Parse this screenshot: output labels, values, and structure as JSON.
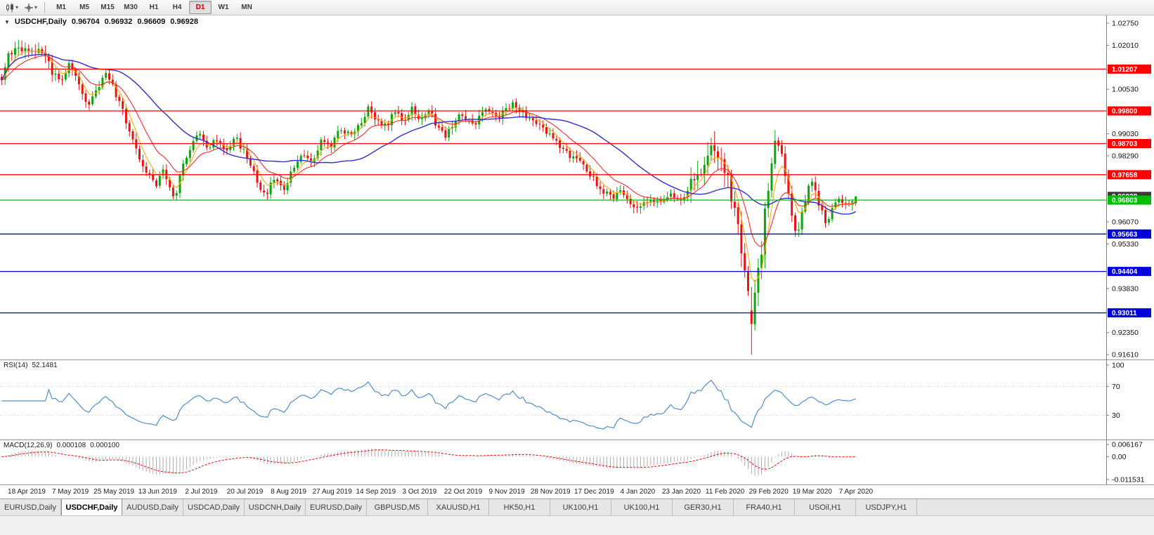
{
  "toolbar": {
    "timeframes": [
      "M1",
      "M5",
      "M15",
      "M30",
      "H1",
      "H4",
      "D1",
      "W1",
      "MN"
    ],
    "active_timeframe": "D1"
  },
  "chart": {
    "symbol": "USDCHF,Daily",
    "open": "0.96704",
    "high": "0.96932",
    "low": "0.96609",
    "close": "0.96928"
  },
  "price_axis": {
    "ticks": [
      "1.02750",
      "1.02010",
      "1.01270",
      "1.00530",
      "0.99790",
      "0.99030",
      "0.98290",
      "0.97550",
      "0.96810",
      "0.96070",
      "0.95330",
      "0.94570",
      "0.93830",
      "0.93090",
      "0.92350",
      "0.91610"
    ]
  },
  "hlines": {
    "red": [
      "1.01207",
      "0.99800",
      "0.98703",
      "0.97658"
    ],
    "green": [
      "0.96803"
    ],
    "blue": [
      "0.95663",
      "0.94404",
      "0.93011"
    ],
    "bid": "0.96928"
  },
  "date_axis": [
    "18 Apr 2019",
    "7 May 2019",
    "25 May 2019",
    "13 Jun 2019",
    "2 Jul 2019",
    "20 Jul 2019",
    "8 Aug 2019",
    "27 Aug 2019",
    "14 Sep 2019",
    "3 Oct 2019",
    "22 Oct 2019",
    "9 Nov 2019",
    "28 Nov 2019",
    "17 Dec 2019",
    "4 Jan 2020",
    "23 Jan 2020",
    "11 Feb 2020",
    "29 Feb 2020",
    "19 Mar 2020",
    "7 Apr 2020"
  ],
  "rsi": {
    "label": "RSI(14)",
    "value": "52.1481",
    "axis": [
      "100",
      "70",
      "30"
    ],
    "levels": [
      70,
      30
    ]
  },
  "macd": {
    "label": "MACD(12,26,9)",
    "value1": "0.000108",
    "value2": "0.000100",
    "axis_top": "0.006167",
    "axis_zero": "0.00",
    "axis_bottom": "-0.011531",
    "range": [
      -0.011531,
      0.006167
    ]
  },
  "tabs": {
    "items": [
      "EURUSD,Daily",
      "USDCHF,Daily",
      "AUDUSD,Daily",
      "USDCAD,Daily",
      "USDCNH,Daily",
      "EURUSD,Daily",
      "GBPUSD,M5",
      "XAUUSD,H1",
      "HK50,H1",
      "UK100,H1",
      "UK100,H1",
      "GER30,H1",
      "FRA40,H1",
      "USOil,H1",
      "USDJPY,H1"
    ],
    "active_index": 1
  },
  "colors": {
    "up": "#0CA50C",
    "down": "#E81414",
    "ma_fast": "#FFAC00",
    "ma_mid": "#FF2A2A",
    "ma_slow": "#2E2EDC",
    "hline_red": "#FF0000",
    "hline_blue": "#0000DD",
    "hline_green": "#00BE00",
    "bid_label": "#3C3C3C",
    "rsi_line": "#4F8FD0",
    "rsi_level": "#C9C9C9",
    "macd_hist": "#ADADAD",
    "macd_signal": "#FF0000",
    "axis_line": "#808080",
    "tick_text": "#111111"
  },
  "chart_data": {
    "type": "candlestick",
    "symbol": "USDCHF",
    "timeframe": "Daily",
    "num_candles": 255,
    "x_start": "18 Apr 2019",
    "x_end": "7 Apr 2020",
    "price_range": [
      0.9161,
      1.0275
    ],
    "extremes": {
      "high": 1.0207,
      "low": 0.9161,
      "rebound_high": 0.9915,
      "last_close": 0.96928
    },
    "last_candle": {
      "open": 0.96704,
      "high": 0.96932,
      "low": 0.96609,
      "close": 0.96928
    },
    "horizontal_levels": {
      "resistance": [
        1.01207,
        0.998,
        0.98703,
        0.97658
      ],
      "current": 0.96803,
      "support": [
        0.95663,
        0.94404,
        0.93011
      ]
    },
    "close_waypoints": [
      [
        0.0,
        1.008
      ],
      [
        0.008,
        1.016
      ],
      [
        0.02,
        1.02
      ],
      [
        0.033,
        1.0165
      ],
      [
        0.045,
        1.0195
      ],
      [
        0.058,
        1.012
      ],
      [
        0.07,
        1.008
      ],
      [
        0.08,
        1.0145
      ],
      [
        0.092,
        1.005
      ],
      [
        0.102,
        1.0
      ],
      [
        0.112,
        1.006
      ],
      [
        0.124,
        1.0105
      ],
      [
        0.136,
        1.002
      ],
      [
        0.148,
        0.993
      ],
      [
        0.16,
        0.983
      ],
      [
        0.172,
        0.976
      ],
      [
        0.181,
        0.972
      ],
      [
        0.188,
        0.979
      ],
      [
        0.196,
        0.973
      ],
      [
        0.203,
        0.969
      ],
      [
        0.212,
        0.979
      ],
      [
        0.222,
        0.987
      ],
      [
        0.232,
        0.99
      ],
      [
        0.242,
        0.9855
      ],
      [
        0.252,
        0.9885
      ],
      [
        0.262,
        0.984
      ],
      [
        0.272,
        0.9895
      ],
      [
        0.282,
        0.985
      ],
      [
        0.292,
        0.98
      ],
      [
        0.3,
        0.973
      ],
      [
        0.31,
        0.9705
      ],
      [
        0.32,
        0.976
      ],
      [
        0.33,
        0.972
      ],
      [
        0.342,
        0.979
      ],
      [
        0.352,
        0.984
      ],
      [
        0.362,
        0.98
      ],
      [
        0.374,
        0.9875
      ],
      [
        0.386,
        0.986
      ],
      [
        0.396,
        0.992
      ],
      [
        0.408,
        0.9895
      ],
      [
        0.42,
        0.993
      ],
      [
        0.43,
        1.0
      ],
      [
        0.438,
        0.9945
      ],
      [
        0.45,
        0.9925
      ],
      [
        0.46,
        0.9975
      ],
      [
        0.47,
        0.995
      ],
      [
        0.48,
        0.999
      ],
      [
        0.49,
        0.995
      ],
      [
        0.5,
        0.998
      ],
      [
        0.51,
        0.993
      ],
      [
        0.52,
        0.99
      ],
      [
        0.53,
        0.9945
      ],
      [
        0.54,
        0.9975
      ],
      [
        0.55,
        0.9925
      ],
      [
        0.56,
        0.996
      ],
      [
        0.57,
        0.999
      ],
      [
        0.58,
        0.995
      ],
      [
        0.59,
        0.9985
      ],
      [
        0.6,
        1.0005
      ],
      [
        0.61,
        0.9975
      ],
      [
        0.624,
        0.994
      ],
      [
        0.638,
        0.991
      ],
      [
        0.652,
        0.987
      ],
      [
        0.666,
        0.983
      ],
      [
        0.678,
        0.98
      ],
      [
        0.69,
        0.976
      ],
      [
        0.702,
        0.972
      ],
      [
        0.714,
        0.969
      ],
      [
        0.726,
        0.9715
      ],
      [
        0.736,
        0.9672
      ],
      [
        0.748,
        0.9655
      ],
      [
        0.76,
        0.969
      ],
      [
        0.772,
        0.9665
      ],
      [
        0.784,
        0.97
      ],
      [
        0.796,
        0.968
      ],
      [
        0.806,
        0.972
      ],
      [
        0.816,
        0.978
      ],
      [
        0.826,
        0.983
      ],
      [
        0.836,
        0.985
      ],
      [
        0.844,
        0.98
      ],
      [
        0.852,
        0.972
      ],
      [
        0.86,
        0.962
      ],
      [
        0.868,
        0.948
      ],
      [
        0.874,
        0.936
      ],
      [
        0.878,
        0.927
      ],
      [
        0.884,
        0.939
      ],
      [
        0.89,
        0.953
      ],
      [
        0.896,
        0.969
      ],
      [
        0.902,
        0.983
      ],
      [
        0.907,
        0.9895
      ],
      [
        0.912,
        0.986
      ],
      [
        0.918,
        0.9755
      ],
      [
        0.924,
        0.965
      ],
      [
        0.93,
        0.9575
      ],
      [
        0.936,
        0.962
      ],
      [
        0.942,
        0.9685
      ],
      [
        0.948,
        0.9745
      ],
      [
        0.954,
        0.97
      ],
      [
        0.96,
        0.964
      ],
      [
        0.966,
        0.9605
      ],
      [
        0.973,
        0.965
      ],
      [
        0.981,
        0.9685
      ],
      [
        0.989,
        0.966
      ],
      [
        1.0,
        0.9693
      ]
    ]
  }
}
